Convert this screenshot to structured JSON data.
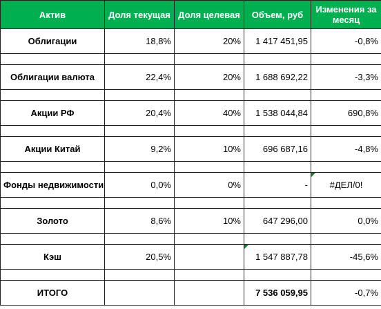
{
  "table": {
    "header": [
      "Актив",
      "Доля текущая",
      "Доля целевая",
      "Объем, руб",
      "Изменения за месяц"
    ],
    "rows": [
      [
        "Облигации",
        "18,8%",
        "20%",
        "1 417 451,95",
        "-0,8%"
      ],
      [
        "Облигации валюта",
        "22,4%",
        "20%",
        "1 688 692,22",
        "-3,3%"
      ],
      [
        "Акции РФ",
        "20,4%",
        "40%",
        "1 538 044,84",
        "690,8%"
      ],
      [
        "Акции Китай",
        "9,2%",
        "10%",
        "696 687,16",
        "-4,8%"
      ],
      [
        "Фонды недвижимости",
        "0,0%",
        "0%",
        "-",
        "#ДЕЛ/0!"
      ],
      [
        "Золото",
        "8,6%",
        "10%",
        "647 296,00",
        "0,0%"
      ],
      [
        "Кэш",
        "20,5%",
        null,
        "1 547 887,78",
        "-45,6%"
      ],
      [
        "ИТОГО",
        null,
        null,
        "7 536 059,95",
        "-0,7%"
      ]
    ]
  }
}
